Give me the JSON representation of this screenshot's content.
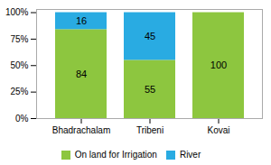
{
  "chart_data": {
    "type": "bar",
    "stacked": true,
    "categories": [
      "Bhadrachalam",
      "Tribeni",
      "Kovai"
    ],
    "series": [
      {
        "name": "On land for Irrigation",
        "color": "#8dc63f",
        "values": [
          84,
          55,
          100
        ]
      },
      {
        "name": "River",
        "color": "#29abe2",
        "values": [
          16,
          45,
          0
        ]
      }
    ],
    "ylim": [
      0,
      103
    ],
    "yticks": [
      {
        "value": 0,
        "label": "0%"
      },
      {
        "value": 25,
        "label": "25%"
      },
      {
        "value": 50,
        "label": "50%"
      },
      {
        "value": 75,
        "label": "75%"
      },
      {
        "value": 100,
        "label": "100%"
      }
    ],
    "grid": false,
    "legend": "bottom",
    "data_labels": true
  }
}
